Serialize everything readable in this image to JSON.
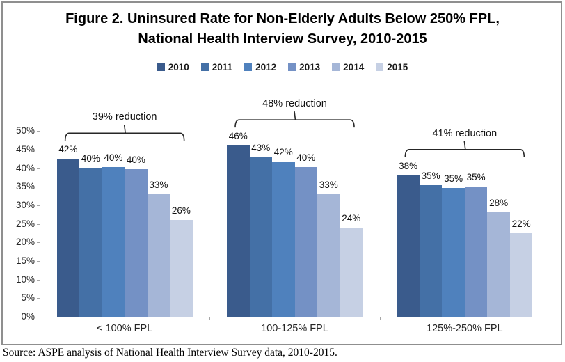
{
  "figure": {
    "title_line1": "Figure 2. Uninsured Rate for Non-Elderly Adults Below 250% FPL,",
    "title_line2": "National Health Interview Survey, 2010-2015",
    "source_note": "Source: ASPE analysis of National Health Interview Survey data, 2010-2015."
  },
  "chart_data": {
    "type": "bar",
    "title": "Figure 2. Uninsured Rate for Non-Elderly Adults Below 250% FPL, National Health Interview Survey, 2010-2015",
    "categories": [
      "< 100% FPL",
      "100-125% FPL",
      "125%-250% FPL"
    ],
    "series": [
      {
        "name": "2010",
        "color": "#3A5B8C",
        "values": [
          42.5,
          46.1,
          38.1
        ],
        "labels": [
          "42%",
          "46%",
          "38%"
        ]
      },
      {
        "name": "2011",
        "color": "#4470A6",
        "values": [
          40.2,
          42.9,
          35.4
        ],
        "labels": [
          "40%",
          "43%",
          "35%"
        ]
      },
      {
        "name": "2012",
        "color": "#4F81BD",
        "values": [
          40.4,
          41.8,
          34.7
        ],
        "labels": [
          "40%",
          "42%",
          "35%"
        ]
      },
      {
        "name": "2013",
        "color": "#7491C5",
        "values": [
          39.7,
          40.3,
          35.0
        ],
        "labels": [
          "40%",
          "40%",
          "35%"
        ]
      },
      {
        "name": "2014",
        "color": "#A5B6D7",
        "values": [
          33.0,
          33.0,
          28.1
        ],
        "labels": [
          "33%",
          "33%",
          "28%"
        ]
      },
      {
        "name": "2015",
        "color": "#C6D0E4",
        "values": [
          26.0,
          24.0,
          22.5
        ],
        "labels": [
          "26%",
          "24%",
          "22%"
        ]
      }
    ],
    "annotations": [
      {
        "category_index": 0,
        "label": "39% reduction"
      },
      {
        "category_index": 1,
        "label": "48% reduction"
      },
      {
        "category_index": 2,
        "label": "41% reduction"
      }
    ],
    "y_axis": {
      "min": 0,
      "max": 50,
      "step": 5,
      "ticks": [
        "0%",
        "5%",
        "10%",
        "15%",
        "20%",
        "25%",
        "30%",
        "35%",
        "40%",
        "45%",
        "50%"
      ]
    },
    "legend_position": "top",
    "grid": false,
    "xlabel": "",
    "ylabel": ""
  }
}
